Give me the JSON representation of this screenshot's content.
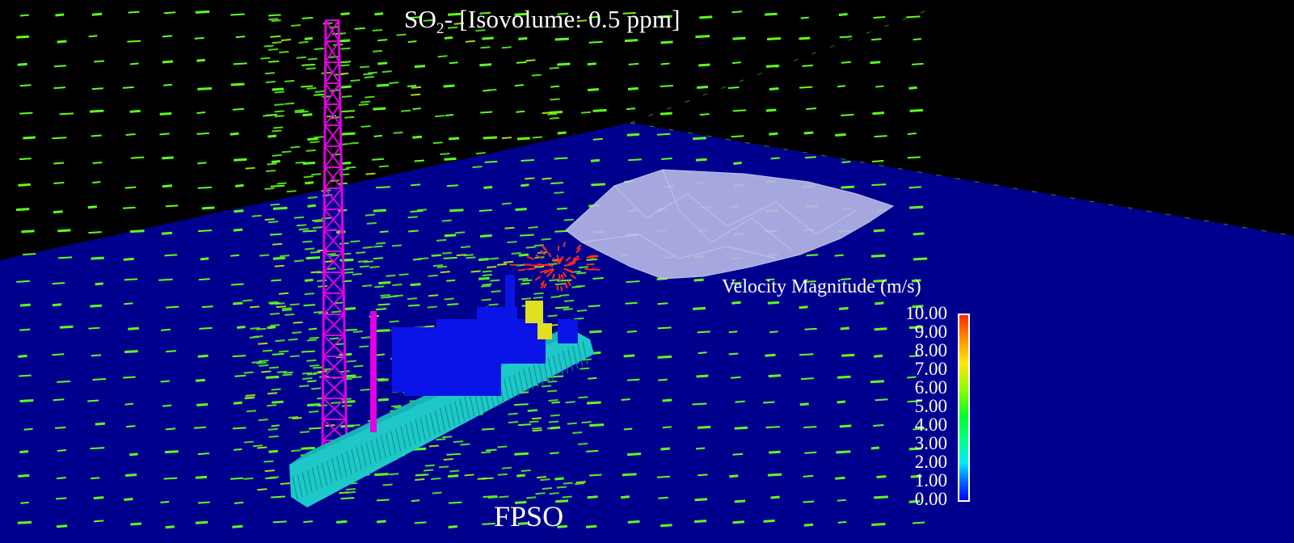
{
  "title": {
    "species": "SO",
    "subscript": "2",
    "suffix": "- [Isovolume: 0.5 ppm]"
  },
  "vessel_label": "FPSO",
  "legend": {
    "title": "Velocity Magnitude (m/s)",
    "ticks": [
      "10.00",
      "9.00",
      "8.00",
      "7.00",
      "6.00",
      "5.00",
      "4.00",
      "3.00",
      "2.00",
      "1.00",
      "0.00"
    ],
    "colors": [
      "#0000ff",
      "#0066ff",
      "#00e8ff",
      "#00ff9a",
      "#00ff2a",
      "#7dff00",
      "#ffe800",
      "#ff9a00",
      "#ff2a00"
    ]
  },
  "scene_colors": {
    "background": "#000000",
    "sea_plane": "#00008f",
    "isovolume": "#b4b4e6",
    "flare_tower": "#e000e0",
    "hull": "#1ec8c8",
    "topsides": "#0a14e6",
    "wind_vectors": "#5cff1e",
    "hot_vectors": "#ff2a1e"
  }
}
